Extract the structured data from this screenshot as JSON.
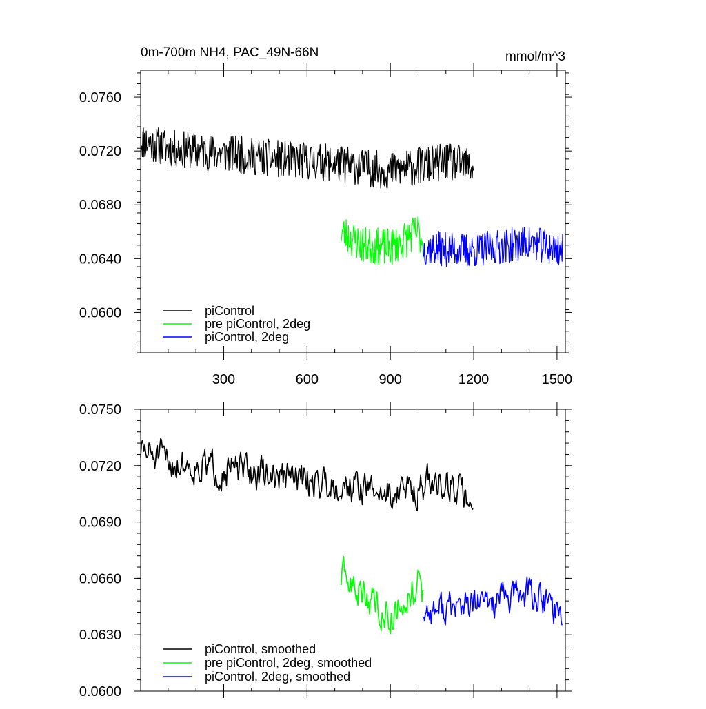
{
  "chart_data": [
    {
      "type": "line",
      "title": "0m-700m NH4, PAC_49N-66N",
      "units": "mmol/m^3",
      "xlim": [
        1,
        1530
      ],
      "ylim": [
        0.057,
        0.078
      ],
      "xticks": [
        300,
        600,
        900,
        1200,
        1500
      ],
      "xtick_labels": [
        "300",
        "600",
        "900",
        "1200",
        "1500"
      ],
      "yticks": [
        0.06,
        0.064,
        0.068,
        0.072,
        0.076
      ],
      "ytick_labels": [
        "0.0600",
        "0.0640",
        "0.0680",
        "0.0720",
        "0.0760"
      ],
      "legend_position": "bottom-left",
      "series": [
        {
          "name": "piControl",
          "color": "#000000",
          "x_range": [
            1,
            1200
          ],
          "segments": [
            [
              1,
              0.0728
            ],
            [
              100,
              0.0722
            ],
            [
              300,
              0.0718
            ],
            [
              500,
              0.0714
            ],
            [
              700,
              0.0711
            ],
            [
              900,
              0.0705
            ],
            [
              1100,
              0.0712
            ],
            [
              1200,
              0.0708
            ]
          ],
          "noise": 0.0014,
          "seed": 11
        },
        {
          "name": "pre piControl, 2deg",
          "color": "#00ff00",
          "x_range": [
            723,
            1020
          ],
          "segments": [
            [
              723,
              0.066
            ],
            [
              800,
              0.065
            ],
            [
              900,
              0.0648
            ],
            [
              1000,
              0.066
            ],
            [
              1020,
              0.0652
            ]
          ],
          "noise": 0.0014,
          "seed": 23
        },
        {
          "name": "piControl, 2deg",
          "color": "#0000ff",
          "x_range": [
            1020,
            1520
          ],
          "segments": [
            [
              1020,
              0.0648
            ],
            [
              1200,
              0.0646
            ],
            [
              1400,
              0.0652
            ],
            [
              1520,
              0.0646
            ]
          ],
          "noise": 0.0013,
          "seed": 37
        }
      ]
    },
    {
      "type": "line",
      "title": "",
      "xlim": [
        1,
        1530
      ],
      "ylim": [
        0.06,
        0.075
      ],
      "xticks": [
        300,
        600,
        900,
        1200,
        1500
      ],
      "yticks": [
        0.06,
        0.063,
        0.066,
        0.069,
        0.072,
        0.075
      ],
      "ytick_labels": [
        "0.0600",
        "0.0630",
        "0.0660",
        "0.0690",
        "0.0720",
        "0.0750"
      ],
      "legend_position": "bottom-left",
      "series": [
        {
          "name": "piControl, smoothed",
          "color": "#000000",
          "x_range": [
            1,
            1200
          ],
          "segments": [
            [
              1,
              0.0728
            ],
            [
              100,
              0.0722
            ],
            [
              300,
              0.0718
            ],
            [
              500,
              0.0714
            ],
            [
              700,
              0.0711
            ],
            [
              900,
              0.0705
            ],
            [
              1100,
              0.0712
            ],
            [
              1200,
              0.07
            ]
          ],
          "noise": 0.0009,
          "seed": 51
        },
        {
          "name": "pre piControl, 2deg, smoothed",
          "color": "#00ff00",
          "x_range": [
            723,
            1020
          ],
          "segments": [
            [
              723,
              0.066
            ],
            [
              800,
              0.0652
            ],
            [
              900,
              0.064
            ],
            [
              1000,
              0.0658
            ],
            [
              1020,
              0.0646
            ]
          ],
          "noise": 0.0009,
          "seed": 63
        },
        {
          "name": "piControl, 2deg, smoothed",
          "color": "#0000ff",
          "x_range": [
            1020,
            1520
          ],
          "segments": [
            [
              1020,
              0.0643
            ],
            [
              1200,
              0.0645
            ],
            [
              1400,
              0.0652
            ],
            [
              1520,
              0.0642
            ]
          ],
          "noise": 0.0009,
          "seed": 77
        }
      ]
    }
  ]
}
